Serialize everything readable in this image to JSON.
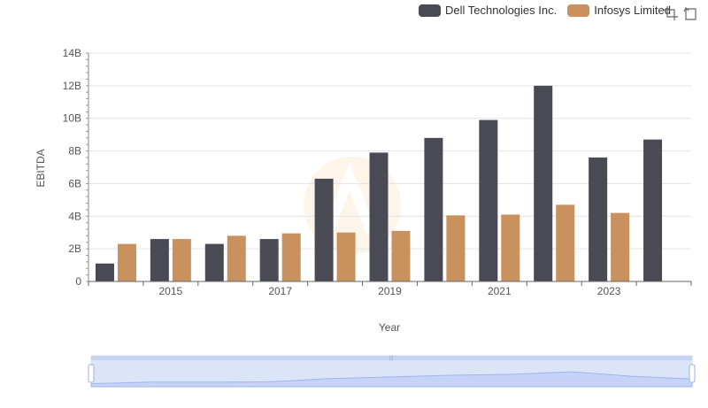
{
  "chart_data": {
    "type": "bar",
    "categories": [
      "2014",
      "2015",
      "2016",
      "2017",
      "2018",
      "2019",
      "2020",
      "2021",
      "2022",
      "2023",
      "2024"
    ],
    "xtick_labels": [
      "2015",
      "2017",
      "2019",
      "2021",
      "2023"
    ],
    "series": [
      {
        "name": "Dell Technologies Inc.",
        "color": "#4a4a55",
        "values": [
          1.1,
          2.6,
          2.3,
          2.6,
          6.3,
          7.9,
          8.8,
          9.9,
          12.0,
          7.6,
          8.7
        ]
      },
      {
        "name": "Infosys Limited",
        "color": "#c8915d",
        "values": [
          2.3,
          2.6,
          2.8,
          2.95,
          3.0,
          3.1,
          4.05,
          4.1,
          4.7,
          4.2,
          null
        ]
      }
    ],
    "xlabel": "Year",
    "ylabel": "EBITDA",
    "ylim": [
      0,
      14
    ],
    "ytick_labels": [
      "0",
      "2B",
      "4B",
      "6B",
      "8B",
      "10B",
      "12B",
      "14B"
    ],
    "unit": "B",
    "grid": true,
    "legend_position": "top-right"
  },
  "toolbox": {
    "zoom_icon": "zoom-icon",
    "restore_icon": "restore-icon"
  },
  "datazoom": {
    "start": 0,
    "end": 100
  }
}
